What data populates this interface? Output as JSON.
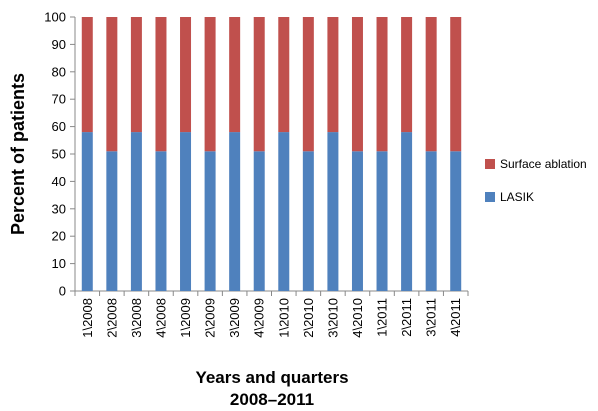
{
  "chart_data": {
    "type": "bar",
    "stacked": true,
    "categories": [
      "1\\2008",
      "2\\2008",
      "3\\2008",
      "4\\2008",
      "1\\2009",
      "2\\2009",
      "3\\2009",
      "4\\2009",
      "1\\2010",
      "2\\2010",
      "3\\2010",
      "4\\2010",
      "1\\2011",
      "2\\2011",
      "3\\2011",
      "4\\2011"
    ],
    "series": [
      {
        "name": "LASIK",
        "color": "#4f81bd",
        "values": [
          58,
          51,
          58,
          51,
          58,
          51,
          58,
          51,
          58,
          51,
          58,
          51,
          51,
          58,
          51,
          51
        ]
      },
      {
        "name": "Surface ablation",
        "color": "#c0504d",
        "values": [
          42,
          49,
          42,
          49,
          42,
          49,
          42,
          49,
          42,
          49,
          42,
          49,
          49,
          42,
          49,
          49
        ]
      }
    ],
    "ylabel": "Percent of patients",
    "xlabel": "Years and quarters",
    "xlabel_line2": "2008–2011",
    "ylim": [
      0,
      100
    ],
    "yticks": [
      0,
      10,
      20,
      30,
      40,
      50,
      60,
      70,
      80,
      90,
      100
    ],
    "grid": false,
    "legend_position": "right",
    "legend_order": [
      "Surface ablation",
      "LASIK"
    ]
  }
}
